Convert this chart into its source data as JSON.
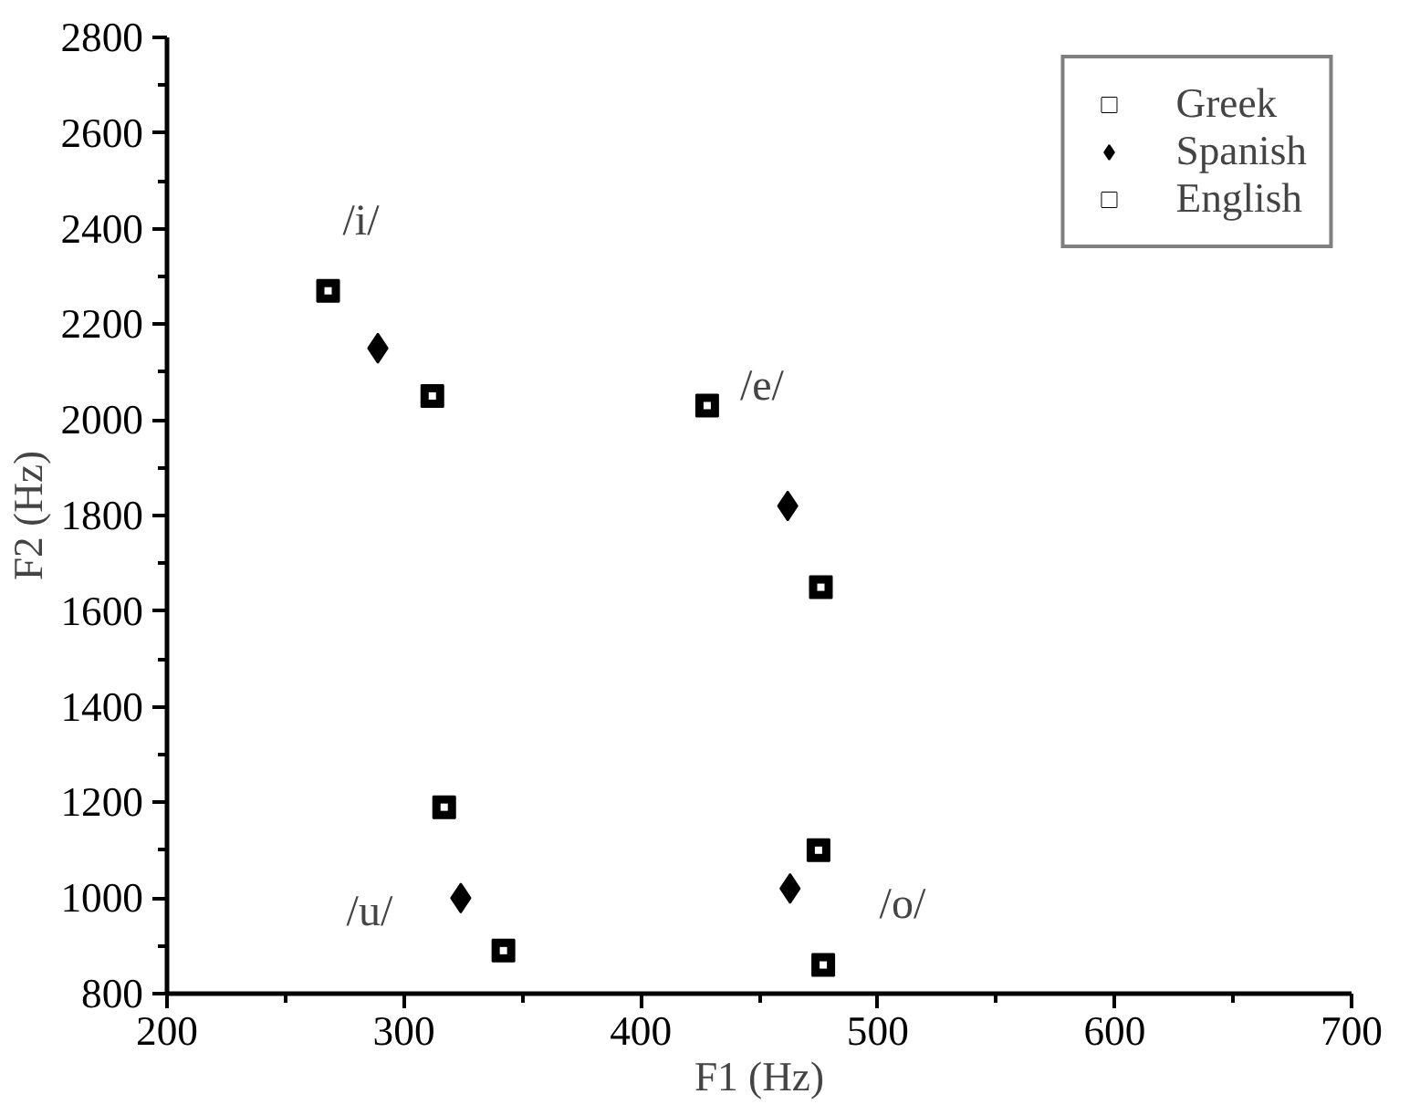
{
  "chart_data": {
    "type": "scatter",
    "xlabel": "F1 (Hz)",
    "ylabel": "F2 (Hz)",
    "xlim": [
      200,
      700
    ],
    "ylim": [
      800,
      2800
    ],
    "xticks": [
      200,
      300,
      400,
      500,
      600,
      700
    ],
    "yticks": [
      800,
      1000,
      1200,
      1400,
      1600,
      1800,
      2000,
      2200,
      2400,
      2600,
      2800
    ],
    "grid": false,
    "legend": "top right",
    "series": [
      {
        "name": "Greek",
        "color": "#000000",
        "marker": "square",
        "x": [
          312,
          476,
          342,
          477
        ],
        "values": [
          2050,
          1650,
          890,
          860
        ]
      },
      {
        "name": "Spanish",
        "color": "#000000",
        "marker": "diamond",
        "x": [
          289,
          462,
          324,
          463
        ],
        "values": [
          2150,
          1820,
          1000,
          1020
        ]
      },
      {
        "name": "English",
        "color": "#000000",
        "marker": "square",
        "x": [
          268,
          428,
          317,
          475
        ],
        "values": [
          2270,
          2030,
          1190,
          1100
        ]
      }
    ],
    "annotations": [
      {
        "text": "/i/",
        "x": 268,
        "y": 2270
      },
      {
        "text": "/e/",
        "x": 428,
        "y": 2030
      },
      {
        "text": "/u/",
        "x": 324,
        "y": 1000
      },
      {
        "text": "/o/",
        "x": 475,
        "y": 1100
      }
    ]
  }
}
